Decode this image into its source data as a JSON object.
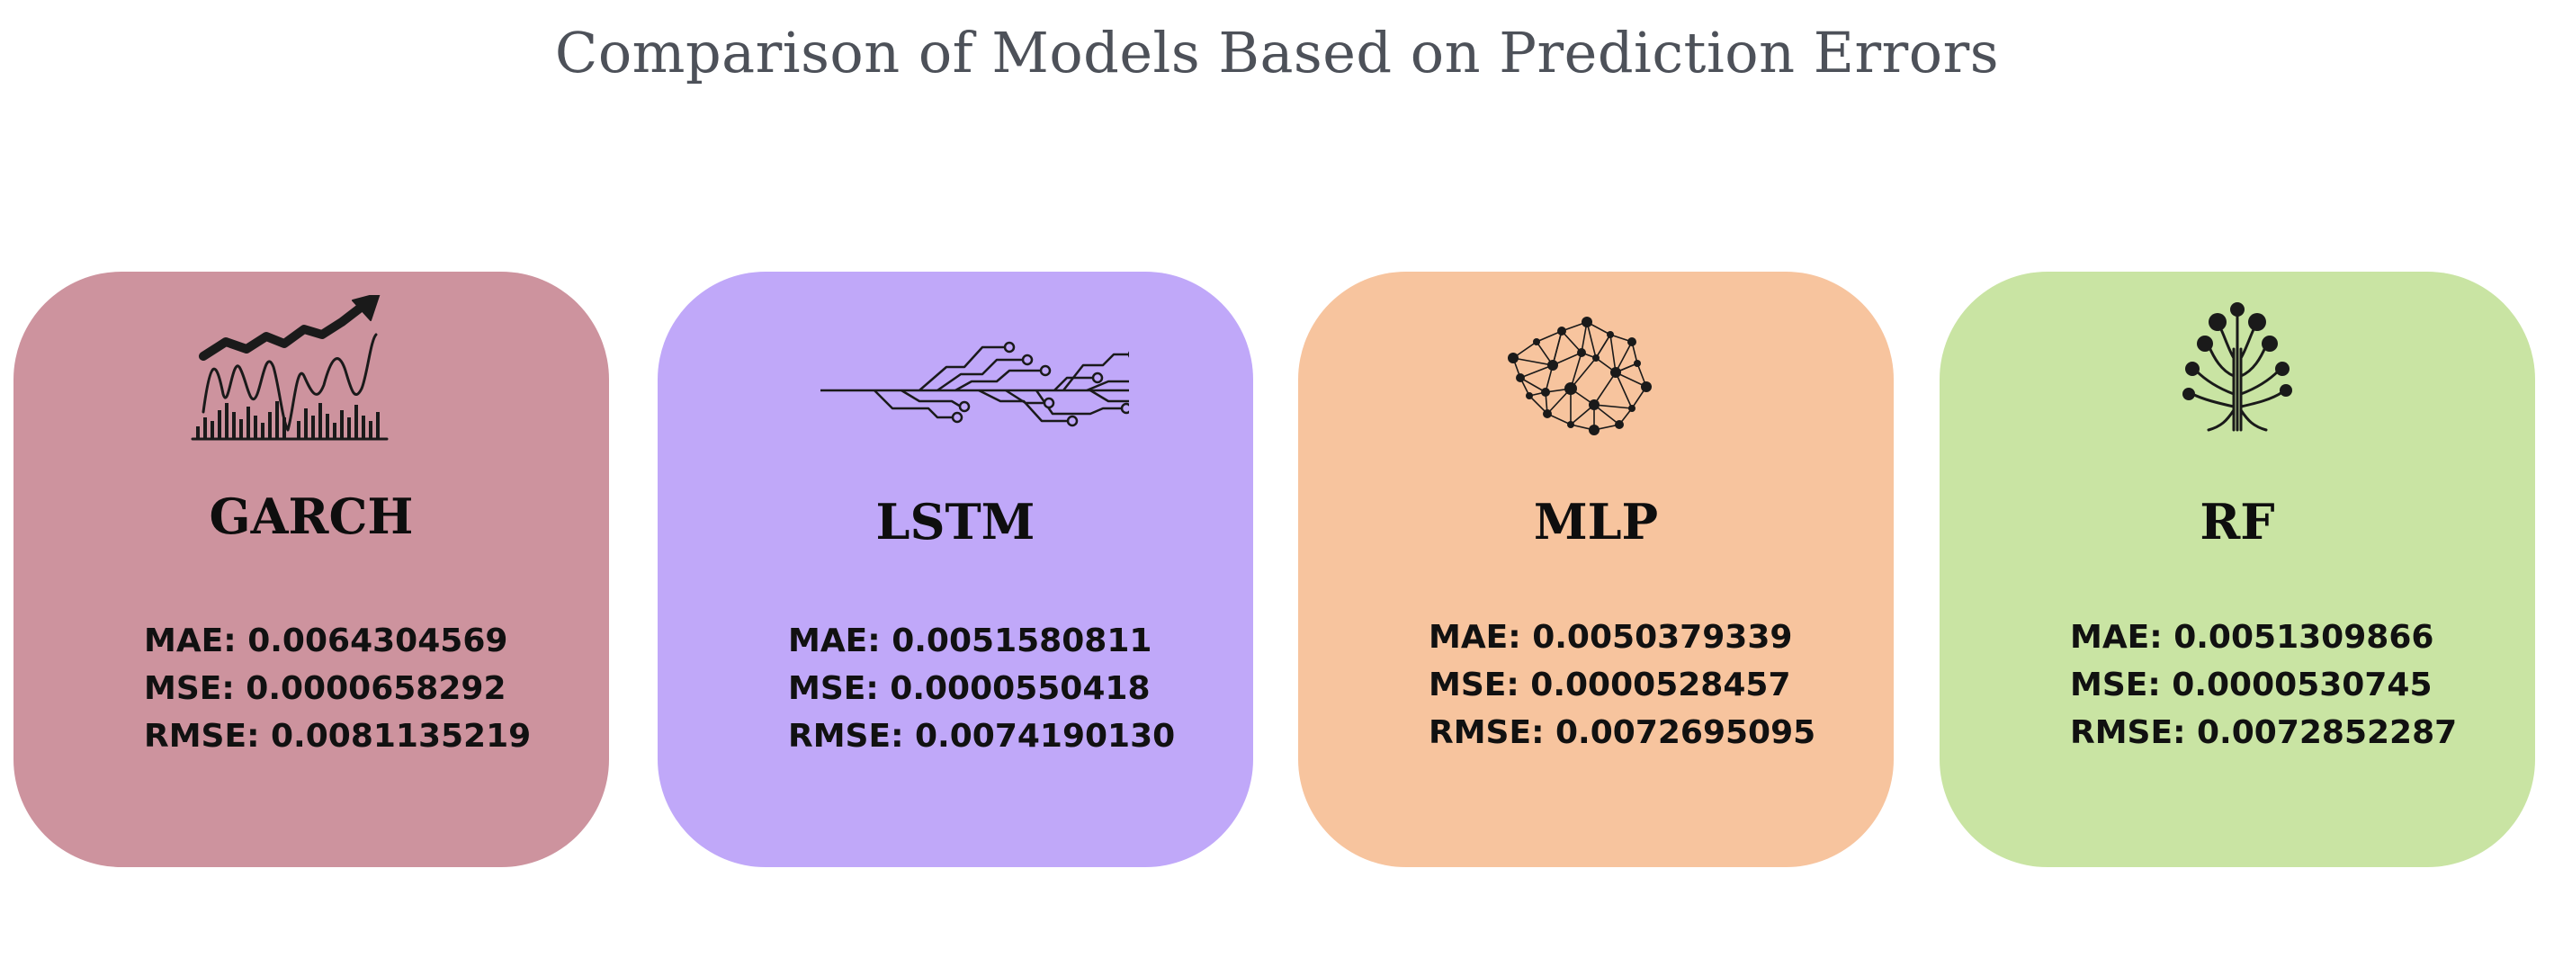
{
  "title": "Comparison of Models Based on Prediction Errors",
  "colors": {
    "garch": "#cd939e",
    "lstm": "#c0a8f9",
    "mlp": "#f7c49e",
    "rf": "#c9e4a3"
  },
  "models": [
    {
      "name": "GARCH",
      "icon": "stock-chart-icon",
      "mae": "MAE: 0.0064304569",
      "mse": "MSE: 0.0000658292",
      "rmse": "RMSE: 0.0081135219"
    },
    {
      "name": "LSTM",
      "icon": "circuit-icon",
      "mae": "MAE: 0.0051580811",
      "mse": "MSE: 0.0000550418",
      "rmse": "RMSE: 0.0074190130"
    },
    {
      "name": "MLP",
      "icon": "neural-network-icon",
      "mae": "MAE: 0.0050379339",
      "mse": "MSE: 0.0000528457",
      "rmse": "RMSE: 0.0072695095"
    },
    {
      "name": "RF",
      "icon": "tree-icon",
      "mae": "MAE: 0.0051309866",
      "mse": "MSE: 0.0000530745",
      "rmse": "RMSE: 0.0072852287"
    }
  ]
}
